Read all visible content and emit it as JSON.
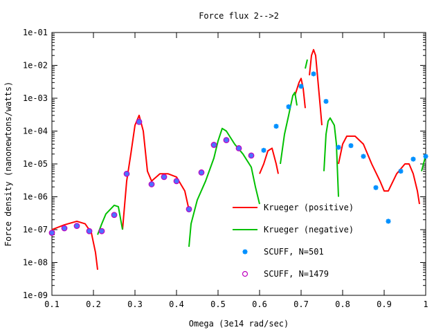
{
  "chart_data": {
    "type": "line",
    "title": "Force flux 2-->2",
    "xlabel": "Omega (3e14 rad/sec)",
    "ylabel": "Force density (nanonewtons/watts)",
    "xlim": [
      0.1,
      1.0
    ],
    "ylim": [
      1e-09,
      0.1
    ],
    "yscale": "log",
    "grid": false,
    "legend_position": "bottom-right",
    "x_ticks": [
      "0.1",
      "0.2",
      "0.3",
      "0.4",
      "0.5",
      "0.6",
      "0.7",
      "0.8",
      "0.9",
      "1"
    ],
    "y_ticks": [
      "1e-09",
      "1e-08",
      "1e-07",
      "1e-06",
      "1e-05",
      "1e-04",
      "1e-03",
      "1e-02",
      "1e-01"
    ],
    "series": [
      {
        "name": "Krueger (positive)",
        "kind": "line",
        "color": "#ff0000",
        "segments": [
          [
            [
              0.1,
              1e-07
            ],
            [
              0.13,
              1.4e-07
            ],
            [
              0.16,
              1.8e-07
            ],
            [
              0.18,
              1.5e-07
            ],
            [
              0.195,
              8e-08
            ],
            [
              0.205,
              2e-08
            ],
            [
              0.21,
              6e-09
            ]
          ],
          [
            [
              0.27,
              1e-07
            ],
            [
              0.28,
              3e-06
            ],
            [
              0.29,
              2e-05
            ],
            [
              0.3,
              0.00015
            ],
            [
              0.31,
              0.0003
            ],
            [
              0.32,
              0.0001
            ],
            [
              0.33,
              6e-06
            ],
            [
              0.34,
              3e-06
            ],
            [
              0.36,
              5e-06
            ],
            [
              0.38,
              5e-06
            ],
            [
              0.4,
              4e-06
            ],
            [
              0.42,
              1.5e-06
            ],
            [
              0.43,
              4e-07
            ]
          ],
          [
            [
              0.6,
              5e-06
            ],
            [
              0.61,
              1e-05
            ],
            [
              0.62,
              2.5e-05
            ],
            [
              0.63,
              3e-05
            ],
            [
              0.64,
              1e-05
            ],
            [
              0.645,
              5e-06
            ]
          ],
          [
            [
              0.685,
              0.0012
            ],
            [
              0.695,
              0.003
            ],
            [
              0.7,
              0.004
            ],
            [
              0.705,
              0.002
            ],
            [
              0.71,
              0.0005
            ]
          ],
          [
            [
              0.72,
              0.005
            ],
            [
              0.725,
              0.02
            ],
            [
              0.73,
              0.03
            ],
            [
              0.735,
              0.02
            ],
            [
              0.74,
              0.004
            ],
            [
              0.745,
              0.0008
            ],
            [
              0.75,
              0.00015
            ]
          ],
          [
            [
              0.79,
              1e-05
            ],
            [
              0.8,
              4e-05
            ],
            [
              0.81,
              7e-05
            ],
            [
              0.83,
              7e-05
            ],
            [
              0.85,
              4e-05
            ],
            [
              0.87,
              1e-05
            ],
            [
              0.89,
              3e-06
            ],
            [
              0.9,
              1.5e-06
            ],
            [
              0.91,
              1.5e-06
            ],
            [
              0.93,
              5e-06
            ],
            [
              0.95,
              1e-05
            ],
            [
              0.96,
              1e-05
            ],
            [
              0.97,
              5e-06
            ],
            [
              0.98,
              1.5e-06
            ],
            [
              0.985,
              6e-07
            ]
          ]
        ]
      },
      {
        "name": "Krueger (negative)",
        "kind": "line",
        "color": "#00c000",
        "segments": [
          [
            [
              0.21,
              7e-08
            ],
            [
              0.22,
              1.5e-07
            ],
            [
              0.23,
              3e-07
            ],
            [
              0.25,
              5.5e-07
            ],
            [
              0.26,
              5e-07
            ],
            [
              0.27,
              1e-07
            ]
          ],
          [
            [
              0.43,
              3e-08
            ],
            [
              0.435,
              1.5e-07
            ],
            [
              0.45,
              8e-07
            ],
            [
              0.47,
              3e-06
            ],
            [
              0.49,
              1.5e-05
            ],
            [
              0.5,
              5e-05
            ],
            [
              0.51,
              0.00012
            ],
            [
              0.52,
              0.0001
            ],
            [
              0.54,
              4e-05
            ],
            [
              0.56,
              2e-05
            ],
            [
              0.58,
              8e-06
            ],
            [
              0.59,
              2e-06
            ],
            [
              0.6,
              6e-07
            ]
          ],
          [
            [
              0.65,
              1e-05
            ],
            [
              0.66,
              8e-05
            ],
            [
              0.67,
              0.0003
            ],
            [
              0.68,
              0.0012
            ],
            [
              0.685,
              0.0015
            ],
            [
              0.69,
              0.0006
            ]
          ],
          [
            [
              0.71,
              0.008
            ],
            [
              0.715,
              0.015
            ]
          ],
          [
            [
              0.755,
              6e-06
            ],
            [
              0.76,
              8e-05
            ],
            [
              0.765,
              0.0002
            ],
            [
              0.77,
              0.00025
            ],
            [
              0.78,
              0.00015
            ],
            [
              0.785,
              4e-05
            ],
            [
              0.79,
              1e-06
            ]
          ],
          [
            [
              0.99,
              6e-06
            ],
            [
              1.0,
              1.8e-05
            ]
          ]
        ]
      },
      {
        "name": "SCUFF, N=501",
        "kind": "scatter",
        "marker": "star",
        "color": "#0090ff",
        "points": [
          [
            0.1,
            8e-08
          ],
          [
            0.13,
            1.1e-07
          ],
          [
            0.16,
            1.3e-07
          ],
          [
            0.19,
            9e-08
          ],
          [
            0.22,
            9e-08
          ],
          [
            0.25,
            2.8e-07
          ],
          [
            0.28,
            5e-06
          ],
          [
            0.31,
            0.0002
          ],
          [
            0.34,
            2.4e-06
          ],
          [
            0.37,
            4e-06
          ],
          [
            0.4,
            3e-06
          ],
          [
            0.43,
            4e-07
          ],
          [
            0.46,
            5.5e-06
          ],
          [
            0.49,
            3.8e-05
          ],
          [
            0.52,
            5.5e-05
          ],
          [
            0.55,
            3e-05
          ],
          [
            0.58,
            1.8e-05
          ],
          [
            0.61,
            2.6e-05
          ],
          [
            0.64,
            0.00014
          ],
          [
            0.67,
            0.00055
          ],
          [
            0.7,
            0.0023
          ],
          [
            0.73,
            0.0055
          ],
          [
            0.76,
            0.0008
          ],
          [
            0.79,
            3.2e-05
          ],
          [
            0.82,
            3.6e-05
          ],
          [
            0.85,
            1.7e-05
          ],
          [
            0.88,
            1.9e-06
          ],
          [
            0.91,
            1.8e-07
          ],
          [
            0.94,
            6e-06
          ],
          [
            0.97,
            1.4e-05
          ],
          [
            1.0,
            1.7e-05
          ]
        ]
      },
      {
        "name": "SCUFF, N=1479",
        "kind": "scatter",
        "marker": "circle",
        "color": "#c000c0",
        "points": [
          [
            0.1,
            8e-08
          ],
          [
            0.13,
            1.1e-07
          ],
          [
            0.16,
            1.3e-07
          ],
          [
            0.19,
            9e-08
          ],
          [
            0.22,
            9e-08
          ],
          [
            0.25,
            2.8e-07
          ],
          [
            0.28,
            5e-06
          ],
          [
            0.31,
            0.00019
          ],
          [
            0.34,
            2.4e-06
          ],
          [
            0.37,
            4e-06
          ],
          [
            0.4,
            3e-06
          ],
          [
            0.43,
            4.2e-07
          ],
          [
            0.46,
            5.5e-06
          ],
          [
            0.49,
            3.8e-05
          ],
          [
            0.52,
            5.3e-05
          ],
          [
            0.55,
            3e-05
          ],
          [
            0.58,
            1.8e-05
          ]
        ]
      }
    ]
  }
}
